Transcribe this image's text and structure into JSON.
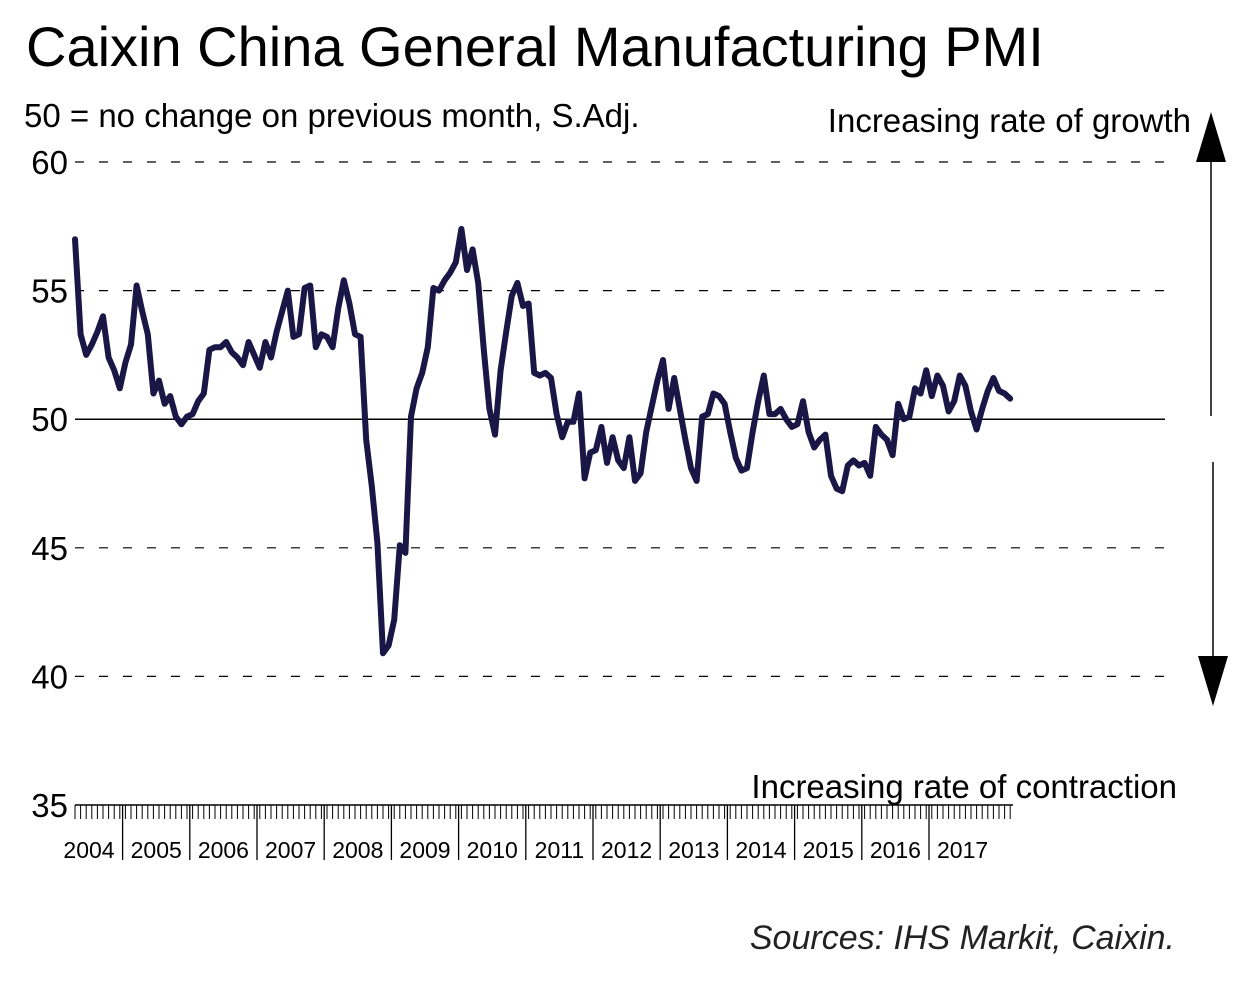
{
  "header": {
    "title": "Caixin China General Manufacturing PMI",
    "subtitle": "50 = no change on previous month, S.Adj."
  },
  "annotations": {
    "growth": "Increasing rate of growth",
    "contraction": "Increasing rate of contraction"
  },
  "footer": {
    "source": "Sources: IHS Markit, Caixin."
  },
  "colors": {
    "series": "#1a1646",
    "grid": "#000000",
    "axis": "#000000"
  },
  "chart_data": {
    "type": "line",
    "title": "Caixin China General Manufacturing PMI",
    "subtitle": "50 = no change on previous month, S.Adj.",
    "xlabel": "",
    "ylabel": "",
    "ylim": [
      35,
      60
    ],
    "yticks": [
      "35",
      "40",
      "45",
      "50",
      "55",
      "60"
    ],
    "grid": "dashed horizontal at 40, 45, 55, 60; solid line at 50",
    "legend": "none",
    "x_start": "2004-04",
    "x_end": "2017-09",
    "x_tick_labels": [
      "2004",
      "2005",
      "2006",
      "2007",
      "2008",
      "2009",
      "2010",
      "2011",
      "2012",
      "2013",
      "2014",
      "2015",
      "2016",
      "2017"
    ],
    "series": [
      {
        "name": "Caixin China General Manufacturing PMI",
        "values": [
          57.0,
          53.3,
          52.5,
          52.9,
          53.4,
          54.0,
          52.4,
          51.9,
          51.2,
          52.2,
          52.9,
          55.2,
          54.2,
          53.3,
          51.0,
          51.5,
          50.6,
          50.9,
          50.1,
          49.8,
          50.1,
          50.2,
          50.7,
          51.0,
          52.7,
          52.8,
          52.8,
          53.0,
          52.6,
          52.4,
          52.1,
          53.0,
          52.5,
          52.0,
          53.0,
          52.4,
          53.4,
          54.2,
          55.0,
          53.2,
          53.3,
          55.1,
          55.2,
          52.8,
          53.3,
          53.2,
          52.8,
          54.3,
          55.4,
          54.5,
          53.3,
          53.2,
          49.2,
          47.4,
          45.2,
          40.9,
          41.2,
          42.2,
          45.1,
          44.8,
          50.1,
          51.2,
          51.8,
          52.8,
          55.1,
          55.0,
          55.4,
          55.7,
          56.1,
          57.4,
          55.8,
          56.6,
          55.3,
          52.7,
          50.4,
          49.4,
          51.9,
          53.4,
          54.8,
          55.3,
          54.4,
          54.5,
          51.8,
          51.7,
          51.8,
          51.6,
          50.2,
          49.3,
          49.9,
          49.9,
          51.0,
          47.7,
          48.7,
          48.8,
          49.7,
          48.3,
          49.3,
          48.4,
          48.1,
          49.3,
          47.6,
          47.9,
          49.5,
          50.5,
          51.5,
          52.3,
          50.4,
          51.6,
          50.4,
          49.2,
          48.1,
          47.6,
          50.1,
          50.2,
          51.0,
          50.9,
          50.6,
          49.5,
          48.5,
          48.0,
          48.1,
          49.5,
          50.7,
          51.7,
          50.2,
          50.2,
          50.4,
          50.0,
          49.7,
          49.8,
          50.7,
          49.5,
          48.9,
          49.2,
          49.4,
          47.8,
          47.3,
          47.2,
          48.2,
          48.4,
          48.2,
          48.3,
          47.8,
          49.7,
          49.4,
          49.2,
          48.6,
          50.6,
          50.0,
          50.1,
          51.2,
          51.0,
          51.9,
          50.9,
          51.7,
          51.3,
          50.3,
          50.7,
          51.7,
          51.3,
          50.3,
          49.6,
          50.4,
          51.1,
          51.6,
          51.1,
          51.0,
          50.8
        ]
      }
    ]
  }
}
